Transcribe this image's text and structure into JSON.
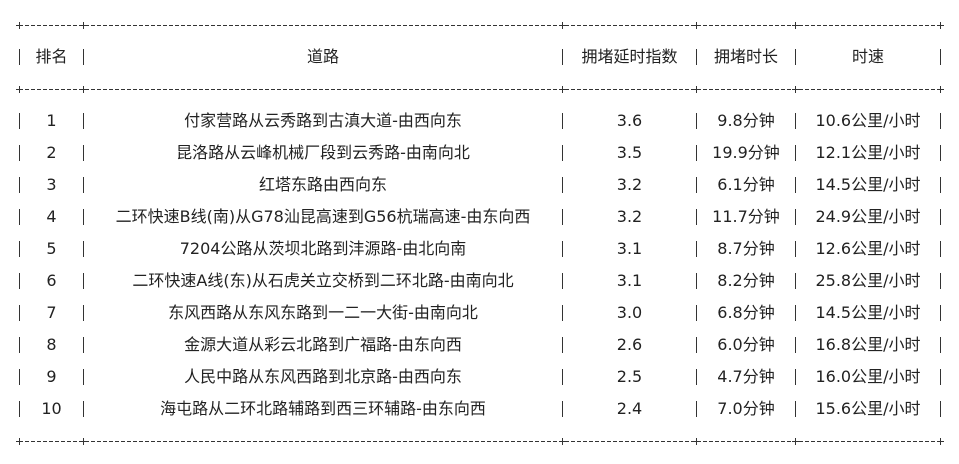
{
  "table": {
    "headers": [
      "排名",
      "道路",
      "拥堵延时指数",
      "拥堵时长",
      "时速"
    ],
    "rows": [
      [
        "1",
        "付家营路从云秀路到古滇大道-由西向东",
        "3.6",
        "9.8分钟",
        "10.6公里/小时"
      ],
      [
        "2",
        "昆洛路从云峰机械厂段到云秀路-由南向北",
        "3.5",
        "19.9分钟",
        "12.1公里/小时"
      ],
      [
        "3",
        "红塔东路由西向东",
        "3.2",
        "6.1分钟",
        "14.5公里/小时"
      ],
      [
        "4",
        "二环快速B线(南)从G78汕昆高速到G56杭瑞高速-由东向西",
        "3.2",
        "11.7分钟",
        "24.9公里/小时"
      ],
      [
        "5",
        "7204公路从茨坝北路到沣源路-由北向南",
        "3.1",
        "8.7分钟",
        "12.6公里/小时"
      ],
      [
        "6",
        "二环快速A线(东)从石虎关立交桥到二环北路-由南向北",
        "3.1",
        "8.2分钟",
        "25.8公里/小时"
      ],
      [
        "7",
        "东风西路从东风东路到一二一大街-由南向北",
        "3.0",
        "6.8分钟",
        "14.5公里/小时"
      ],
      [
        "8",
        "金源大道从彩云北路到广福路-由东向西",
        "2.6",
        "6.0分钟",
        "16.8公里/小时"
      ],
      [
        "9",
        "人民中路从东风西路到北京路-由西向东",
        "2.5",
        "4.7分钟",
        "16.0公里/小时"
      ],
      [
        "10",
        "海屯路从二环北路辅路到西三环辅路-由东向西",
        "2.4",
        "7.0分钟",
        "15.6公里/小时"
      ]
    ]
  }
}
